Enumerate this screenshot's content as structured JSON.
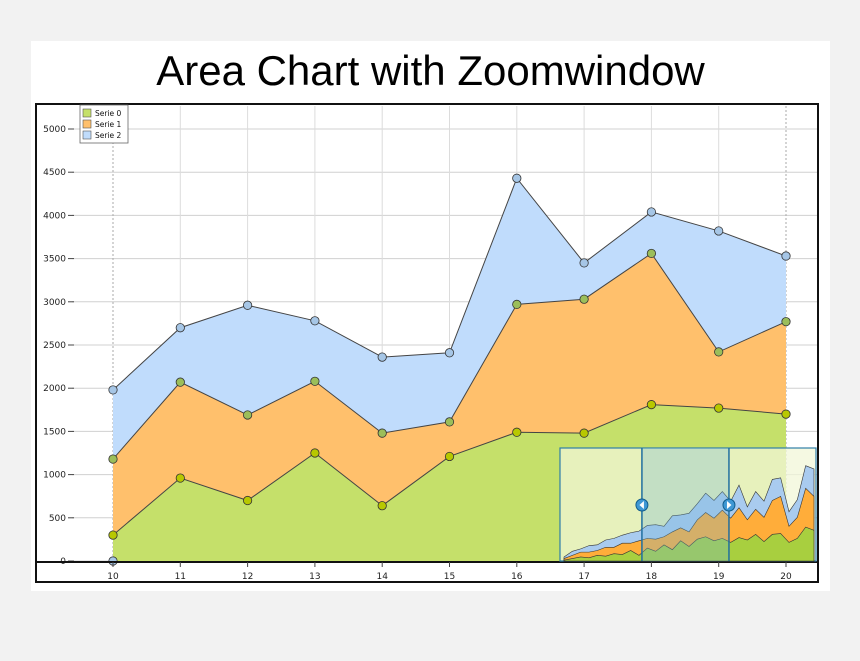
{
  "chart_data": {
    "type": "area",
    "stacked": true,
    "title": "Area Chart with Zoomwindow",
    "xlabel": "",
    "ylabel": "",
    "x": [
      10,
      11,
      12,
      13,
      14,
      15,
      16,
      17,
      18,
      19,
      20
    ],
    "xlim": [
      9.3,
      20.45
    ],
    "ylim": [
      0,
      5000
    ],
    "y_ticks": [
      0,
      500,
      1000,
      1500,
      2000,
      2500,
      3000,
      3500,
      4000,
      4500,
      5000
    ],
    "legend_position": "top-left",
    "grid": true,
    "series": [
      {
        "name": "Serie 0",
        "color": "#c5e06a",
        "values": [
          300,
          960,
          700,
          1250,
          640,
          1210,
          1490,
          1480,
          1810,
          1770,
          1700
        ]
      },
      {
        "name": "Serie 1",
        "color": "#ffc06c",
        "values": [
          880,
          1110,
          990,
          830,
          840,
          400,
          1480,
          1550,
          1750,
          650,
          1070
        ]
      },
      {
        "name": "Serie 2",
        "color": "#c0dcfc",
        "values": [
          800,
          630,
          1270,
          700,
          880,
          800,
          1460,
          420,
          480,
          1400,
          760
        ]
      }
    ],
    "zoom_window": {
      "overview_x": [
        0,
        1,
        2,
        3,
        4,
        5,
        6,
        7,
        8,
        9,
        10,
        11,
        12,
        13,
        14,
        15,
        16,
        17,
        18,
        19,
        20,
        21,
        22,
        23,
        24,
        25,
        26,
        27,
        28,
        29,
        30
      ],
      "overview_series": [
        {
          "name": "Serie 0",
          "values": [
            10,
            30,
            50,
            40,
            70,
            60,
            90,
            80,
            130,
            70,
            160,
            120,
            200,
            140,
            250,
            180,
            270,
            300,
            250,
            280,
            230,
            290,
            260,
            330,
            240,
            330,
            340,
            230,
            280,
            420,
            380
          ]
        },
        {
          "name": "Serie 1",
          "values": [
            20,
            40,
            60,
            70,
            60,
            110,
            80,
            140,
            90,
            180,
            120,
            150,
            100,
            220,
            160,
            180,
            240,
            300,
            280,
            350,
            300,
            370,
            250,
            310,
            300,
            420,
            460,
            200,
            260,
            480,
            420
          ]
        },
        {
          "name": "Serie 2",
          "values": [
            20,
            50,
            40,
            80,
            70,
            90,
            110,
            100,
            130,
            120,
            160,
            180,
            130,
            200,
            160,
            230,
            200,
            240,
            220,
            230,
            210,
            280,
            160,
            220,
            200,
            260,
            230,
            180,
            220,
            280,
            340
          ]
        }
      ],
      "selection_start": 0.32,
      "selection_end": 0.66
    }
  }
}
